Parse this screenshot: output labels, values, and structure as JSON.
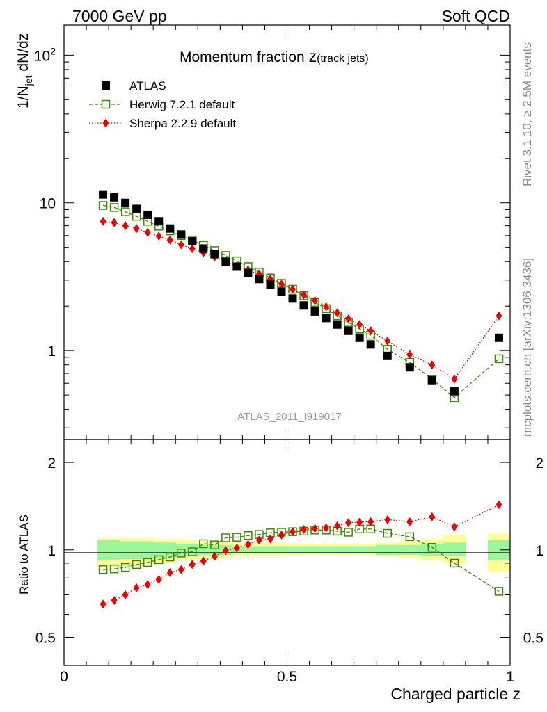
{
  "header": {
    "left": "7000 GeV pp",
    "right": "Soft QCD"
  },
  "side_labels": {
    "rivet": "Rivet 3.1.10, ≥ 2.5M events",
    "mcplots": "mcplots.cern.ch [arXiv:1306.3436]"
  },
  "colors": {
    "atlas": "#000000",
    "herwig": "#3a8a00",
    "sherpa": "#ee0000",
    "band_inner": "#9cf79c",
    "band_outer": "#ffff99"
  },
  "chart_data": [
    {
      "type": "scatter",
      "title_main": "Momentum fraction ",
      "title_var": "z",
      "title_sub": "(track jets)",
      "ylabel": "1/N_jet dN/dz",
      "ylabel_main": "1/N",
      "ylabel_sub": "jet",
      "ylabel_rest": " dN/dz",
      "yscale": "log",
      "ylim": [
        0.25,
        160
      ],
      "xlim": [
        0,
        1
      ],
      "y_ticks": [
        {
          "value": 1,
          "label": "1"
        },
        {
          "value": 10,
          "label": "10"
        },
        {
          "value": 100,
          "label": "10",
          "sup": "2"
        }
      ],
      "watermark": "ATLAS_2011_I919017",
      "legend": [
        "ATLAS",
        "Herwig 7.2.1 default",
        "Sherpa 2.2.9 default"
      ],
      "legend_position": "top-left",
      "x": [
        0.0875,
        0.1125,
        0.1375,
        0.1625,
        0.1875,
        0.2125,
        0.2375,
        0.2625,
        0.2875,
        0.3125,
        0.3375,
        0.3625,
        0.3875,
        0.4125,
        0.4375,
        0.4625,
        0.4875,
        0.5125,
        0.5375,
        0.5625,
        0.5875,
        0.6125,
        0.6375,
        0.6625,
        0.6875,
        0.725,
        0.775,
        0.825,
        0.875,
        0.975
      ],
      "series": [
        {
          "name": "ATLAS",
          "marker": "filled-square",
          "values": [
            11.4,
            10.9,
            10.0,
            9.1,
            8.3,
            7.5,
            6.7,
            6.1,
            5.5,
            4.9,
            4.5,
            4.0,
            3.7,
            3.35,
            3.05,
            2.8,
            2.5,
            2.25,
            2.02,
            1.84,
            1.66,
            1.5,
            1.36,
            1.22,
            1.1,
            0.92,
            0.77,
            0.63,
            0.53,
            1.22
          ]
        },
        {
          "name": "Herwig 7.2.1 default",
          "marker": "open-square",
          "line": "dashed",
          "values": [
            9.6,
            9.3,
            8.7,
            8.1,
            7.5,
            6.95,
            6.45,
            6.0,
            5.6,
            5.15,
            4.75,
            4.4,
            4.05,
            3.7,
            3.4,
            3.1,
            2.85,
            2.6,
            2.35,
            2.12,
            1.92,
            1.72,
            1.55,
            1.4,
            1.27,
            1.02,
            0.83,
            0.64,
            0.48,
            0.88
          ]
        },
        {
          "name": "Sherpa 2.2.9 default",
          "marker": "filled-diamond",
          "line": "dotted",
          "values": [
            7.5,
            7.35,
            7.0,
            6.7,
            6.3,
            5.95,
            5.6,
            5.2,
            4.9,
            4.6,
            4.3,
            4.0,
            3.75,
            3.5,
            3.3,
            3.05,
            2.82,
            2.6,
            2.38,
            2.18,
            1.98,
            1.8,
            1.64,
            1.5,
            1.36,
            1.16,
            0.94,
            0.8,
            0.64,
            1.72
          ]
        }
      ]
    },
    {
      "type": "scatter",
      "ylabel": "Ratio to ATLAS",
      "xlabel": "Charged particle z",
      "yscale": "log",
      "ylim": [
        0.4,
        2.4
      ],
      "xlim": [
        0,
        1
      ],
      "reference_line": 1,
      "x_ticks": [
        {
          "value": 0,
          "label": "0"
        },
        {
          "value": 0.5,
          "label": "0.5"
        },
        {
          "value": 1,
          "label": "1"
        }
      ],
      "y_ticks": [
        {
          "value": 0.5,
          "label": "0.5"
        },
        {
          "value": 1,
          "label": "1"
        },
        {
          "value": 2,
          "label": "2"
        }
      ],
      "bin_edges": [
        0.075,
        0.1,
        0.125,
        0.15,
        0.175,
        0.2,
        0.225,
        0.25,
        0.275,
        0.3,
        0.325,
        0.35,
        0.375,
        0.4,
        0.425,
        0.45,
        0.475,
        0.5,
        0.525,
        0.55,
        0.575,
        0.6,
        0.625,
        0.65,
        0.675,
        0.7,
        0.75,
        0.8,
        0.85,
        0.9,
        0.95,
        1.0
      ],
      "uncertainty_bands": {
        "inner": [
          [
            0.92,
            1.08
          ],
          [
            0.92,
            1.08
          ],
          [
            0.93,
            1.07
          ],
          [
            0.93,
            1.07
          ],
          [
            0.93,
            1.07
          ],
          [
            0.94,
            1.06
          ],
          [
            0.94,
            1.06
          ],
          [
            0.95,
            1.05
          ],
          [
            0.95,
            1.05
          ],
          [
            0.96,
            1.04
          ],
          [
            0.96,
            1.04
          ],
          [
            0.96,
            1.04
          ],
          [
            0.97,
            1.03
          ],
          [
            0.97,
            1.03
          ],
          [
            0.97,
            1.03
          ],
          [
            0.97,
            1.03
          ],
          [
            0.97,
            1.03
          ],
          [
            0.97,
            1.03
          ],
          [
            0.97,
            1.03
          ],
          [
            0.97,
            1.03
          ],
          [
            0.97,
            1.03
          ],
          [
            0.97,
            1.03
          ],
          [
            0.97,
            1.03
          ],
          [
            0.97,
            1.03
          ],
          [
            0.97,
            1.03
          ],
          [
            0.96,
            1.04
          ],
          [
            0.96,
            1.04
          ],
          [
            0.95,
            1.05
          ],
          [
            0.95,
            1.06
          ],
          null,
          [
            0.92,
            1.08
          ]
        ],
        "outer": [
          [
            0.87,
            1.1
          ],
          [
            0.87,
            1.1
          ],
          [
            0.88,
            1.1
          ],
          [
            0.88,
            1.1
          ],
          [
            0.89,
            1.1
          ],
          [
            0.9,
            1.09
          ],
          [
            0.9,
            1.09
          ],
          [
            0.92,
            1.09
          ],
          [
            0.92,
            1.08
          ],
          [
            0.93,
            1.07
          ],
          [
            0.93,
            1.07
          ],
          [
            0.94,
            1.07
          ],
          [
            0.95,
            1.06
          ],
          [
            0.95,
            1.06
          ],
          [
            0.95,
            1.06
          ],
          [
            0.95,
            1.06
          ],
          [
            0.95,
            1.06
          ],
          [
            0.96,
            1.05
          ],
          [
            0.96,
            1.05
          ],
          [
            0.96,
            1.05
          ],
          [
            0.96,
            1.05
          ],
          [
            0.96,
            1.05
          ],
          [
            0.96,
            1.05
          ],
          [
            0.96,
            1.05
          ],
          [
            0.96,
            1.05
          ],
          [
            0.95,
            1.06
          ],
          [
            0.94,
            1.07
          ],
          [
            0.92,
            1.09
          ],
          [
            0.9,
            1.13
          ],
          null,
          [
            0.84,
            1.14
          ]
        ]
      },
      "x": [
        0.0875,
        0.1125,
        0.1375,
        0.1625,
        0.1875,
        0.2125,
        0.2375,
        0.2625,
        0.2875,
        0.3125,
        0.3375,
        0.3625,
        0.3875,
        0.4125,
        0.4375,
        0.4625,
        0.4875,
        0.5125,
        0.5375,
        0.5625,
        0.5875,
        0.6125,
        0.6375,
        0.6625,
        0.6875,
        0.725,
        0.775,
        0.825,
        0.875,
        0.975
      ],
      "series": [
        {
          "name": "Herwig 7.2.1 default",
          "values": [
            0.855,
            0.86,
            0.87,
            0.89,
            0.905,
            0.925,
            0.945,
            0.975,
            0.985,
            1.05,
            1.04,
            1.1,
            1.105,
            1.12,
            1.13,
            1.145,
            1.15,
            1.155,
            1.16,
            1.17,
            1.17,
            1.16,
            1.15,
            1.18,
            1.18,
            1.14,
            1.11,
            1.02,
            0.9,
            0.72
          ]
        },
        {
          "name": "Sherpa 2.2.9 default",
          "values": [
            0.65,
            0.67,
            0.7,
            0.74,
            0.76,
            0.79,
            0.835,
            0.855,
            0.89,
            0.915,
            0.95,
            0.995,
            1.015,
            1.045,
            1.08,
            1.09,
            1.125,
            1.155,
            1.175,
            1.185,
            1.19,
            1.21,
            1.24,
            1.245,
            1.25,
            1.27,
            1.25,
            1.3,
            1.2,
            1.43
          ]
        }
      ]
    }
  ]
}
